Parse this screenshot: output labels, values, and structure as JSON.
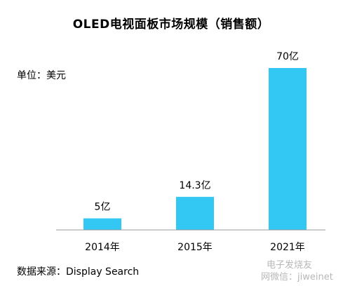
{
  "chart_data": {
    "type": "bar",
    "title": "OLED电视面板市场规模（销售额）",
    "unit": "单位：美元",
    "categories": [
      "2014年",
      "2015年",
      "2021年"
    ],
    "values": [
      5,
      14.3,
      70
    ],
    "data_labels": [
      "5亿",
      "14.3亿",
      "70亿"
    ],
    "ylim": [
      0,
      80
    ],
    "bar_color": "#33c7f4",
    "grid": false,
    "legend": "none",
    "source": "数据来源：Display Search"
  },
  "watermark": {
    "line1": "电子发烧友",
    "line2": "网微信：jiweinet"
  }
}
